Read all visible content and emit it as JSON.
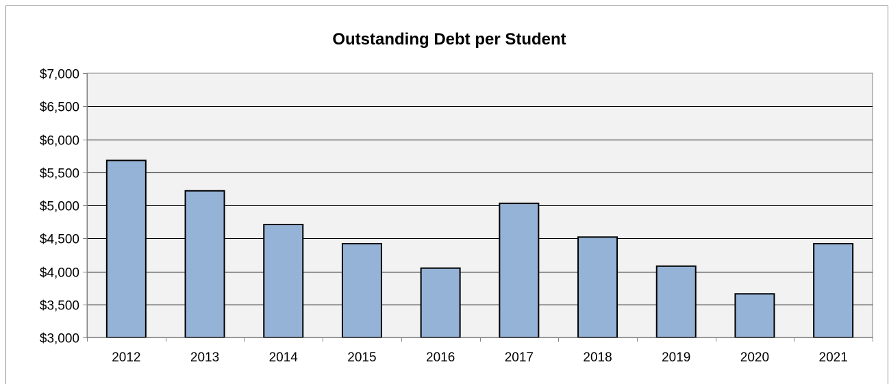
{
  "chart_data": {
    "type": "bar",
    "title": "Outstanding Debt per Student",
    "xlabel": "",
    "ylabel": "",
    "categories": [
      "2012",
      "2013",
      "2014",
      "2015",
      "2016",
      "2017",
      "2018",
      "2019",
      "2020",
      "2021"
    ],
    "values": [
      5680,
      5220,
      4710,
      4420,
      4050,
      5030,
      4520,
      4080,
      3660,
      4420
    ],
    "ylim": [
      3000,
      7000
    ],
    "y_ticks": [
      3000,
      3500,
      4000,
      4500,
      5000,
      5500,
      6000,
      6500,
      7000
    ],
    "y_tick_labels": [
      "$3,000",
      "$3,500",
      "$4,000",
      "$4,500",
      "$5,000",
      "$5,500",
      "$6,000",
      "$6,500",
      "$7,000"
    ],
    "grid": true,
    "legend": "none",
    "colors": {
      "bar_fill": "#95b3d7",
      "bar_stroke": "#000000",
      "plot_background": "#f2f2f2",
      "gridline": "#000000",
      "axis": "#808080"
    }
  }
}
